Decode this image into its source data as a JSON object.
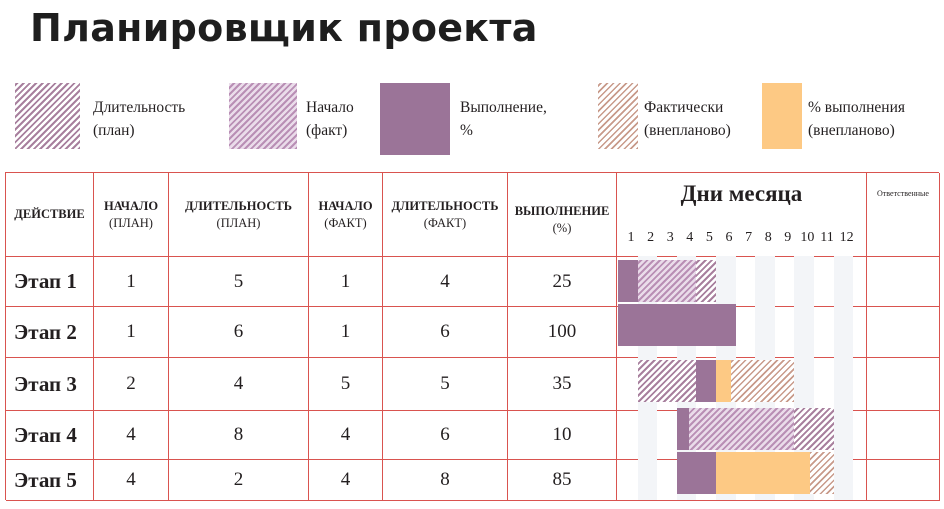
{
  "title": "Планировщик проекта",
  "legend": [
    {
      "key": "duration_plan",
      "text": "Длительность\n(план)",
      "pattern": "hatch-plan"
    },
    {
      "key": "start_fact",
      "text": "Начало\n(факт)",
      "pattern": "hatch-fact"
    },
    {
      "key": "done",
      "text": "Выполнение,\n%",
      "pattern": "solid-done",
      "color": "#9b7498"
    },
    {
      "key": "fact_unplanned",
      "text": "Фактически\n(внепланово)",
      "pattern": "hatch-over"
    },
    {
      "key": "done_unplanned",
      "text": "% выполнения\n(внепланово)",
      "pattern": "solid-over",
      "color": "#fdc984"
    }
  ],
  "columns": {
    "action": "ДЕЙСТВИЕ",
    "start_plan": "НАЧАЛО",
    "start_plan_sub": "(ПЛАН)",
    "dur_plan": "ДЛИТЕЛЬНОСТЬ",
    "dur_plan_sub": "(ПЛАН)",
    "start_fact": "НАЧАЛО",
    "start_fact_sub": "(ФАКТ)",
    "dur_fact": "ДЛИТЕЛЬНОСТЬ",
    "dur_fact_sub": "(ФАКТ)",
    "done": "ВЫПОЛНЕНИЕ",
    "done_sub": "(%)",
    "days": "Дни месяца",
    "responsible": "Ответственные"
  },
  "days": [
    1,
    2,
    3,
    4,
    5,
    6,
    7,
    8,
    9,
    10,
    11,
    12
  ],
  "rows": [
    {
      "name": "Этап 1",
      "start_plan": "1",
      "dur_plan": "5",
      "start_fact": "1",
      "dur_fact": "4",
      "done": "25"
    },
    {
      "name": "Этап 2",
      "start_plan": "1",
      "dur_plan": "6",
      "start_fact": "1",
      "dur_fact": "6",
      "done": "100"
    },
    {
      "name": "Этап 3",
      "start_plan": "2",
      "dur_plan": "4",
      "start_fact": "5",
      "dur_fact": "5",
      "done": "35"
    },
    {
      "name": "Этап 4",
      "start_plan": "4",
      "dur_plan": "8",
      "start_fact": "4",
      "dur_fact": "6",
      "done": "10"
    },
    {
      "name": "Этап 5",
      "start_plan": "4",
      "dur_plan": "2",
      "start_fact": "4",
      "dur_fact": "8",
      "done": "85"
    }
  ],
  "chart_data": {
    "type": "bar",
    "title": "Дни месяца",
    "categories": [
      "Этап 1",
      "Этап 2",
      "Этап 3",
      "Этап 4",
      "Этап 5"
    ],
    "x_ticks": [
      1,
      2,
      3,
      4,
      5,
      6,
      7,
      8,
      9,
      10,
      11,
      12
    ],
    "series": [
      {
        "name": "Начало (план)",
        "values": [
          1,
          1,
          2,
          4,
          4
        ]
      },
      {
        "name": "Длительность (план)",
        "values": [
          5,
          6,
          4,
          8,
          2
        ]
      },
      {
        "name": "Начало (факт)",
        "values": [
          1,
          1,
          5,
          4,
          4
        ]
      },
      {
        "name": "Длительность (факт)",
        "values": [
          4,
          6,
          5,
          6,
          8
        ]
      },
      {
        "name": "Выполнение, %",
        "values": [
          25,
          100,
          35,
          10,
          85
        ]
      }
    ],
    "colors": {
      "done": "#9b7498",
      "done_unplanned": "#fdc984",
      "plan_hatch": "#a8809e",
      "over_hatch": "#c89a8a",
      "grid": "#d9534f"
    }
  }
}
